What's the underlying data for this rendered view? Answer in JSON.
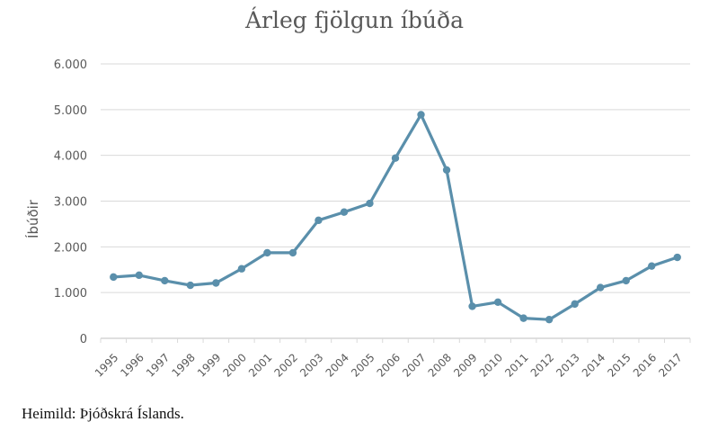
{
  "chart_data": {
    "type": "line",
    "title": "Árleg fjölgun íbúða",
    "xlabel": "",
    "ylabel": "Íbúðir",
    "categories": [
      "1995",
      "1996",
      "1997",
      "1998",
      "1999",
      "2000",
      "2001",
      "2002",
      "2003",
      "2004",
      "2005",
      "2006",
      "2007",
      "2008",
      "2009",
      "2010",
      "2011",
      "2012",
      "2013",
      "2014",
      "2015",
      "2016",
      "2017"
    ],
    "series": [
      {
        "values": [
          1340,
          1380,
          1260,
          1160,
          1210,
          1520,
          1870,
          1870,
          2580,
          2760,
          2950,
          3940,
          4890,
          3680,
          700,
          790,
          440,
          410,
          750,
          1110,
          1260,
          1580,
          1770
        ]
      }
    ],
    "ylim": [
      0,
      6000
    ],
    "yticks": [
      0,
      1000,
      2000,
      3000,
      4000,
      5000,
      6000
    ],
    "ytick_labels": [
      "0",
      "1.000",
      "2.000",
      "3.000",
      "4.000",
      "5.000",
      "6.000"
    ],
    "grid": true,
    "colors": {
      "line": "#5a8fab",
      "grid": "#d9d9d9",
      "axis_text": "#595959"
    }
  },
  "source_note": "Heimild: Þjóðskrá Íslands."
}
